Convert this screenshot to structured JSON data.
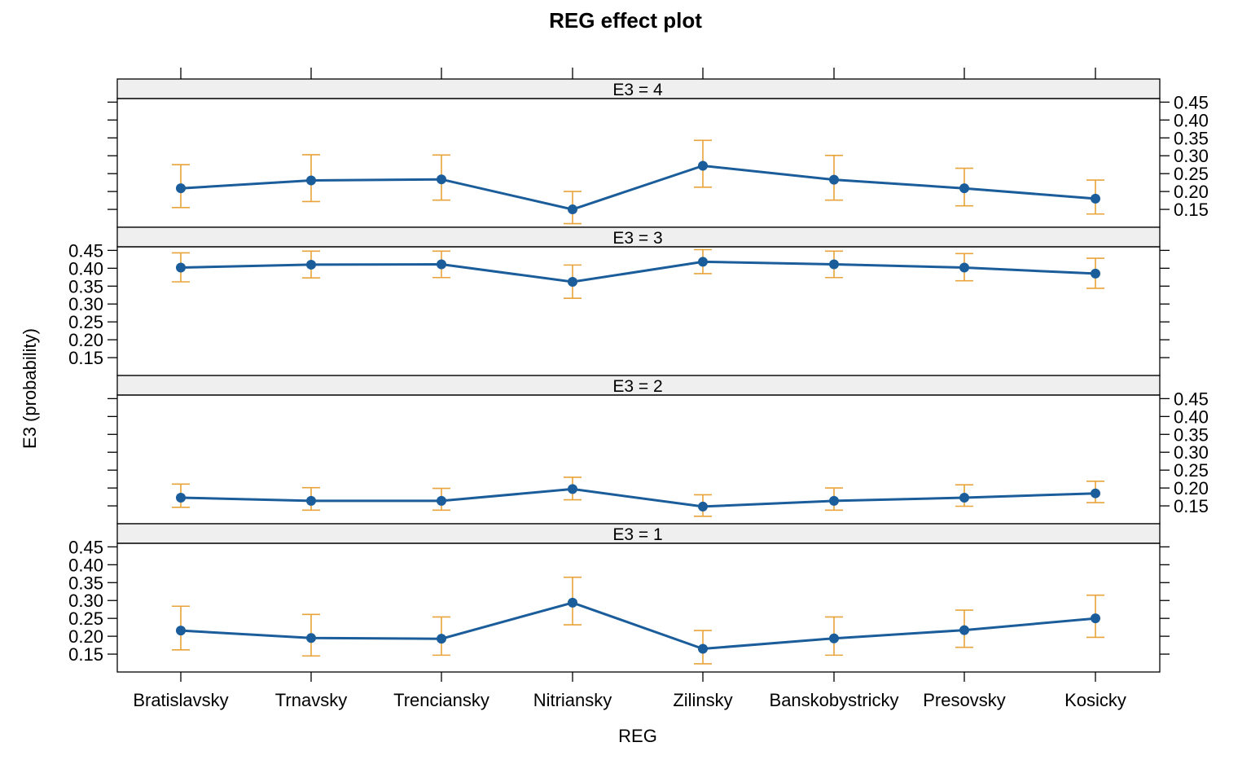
{
  "chart_data": {
    "type": "line",
    "title": "REG effect plot",
    "xlabel": "REG",
    "ylabel": "E3 (probability)",
    "categories": [
      "Bratislavsky",
      "Trnavsky",
      "Trenciansky",
      "Nitriansky",
      "Zilinsky",
      "Banskobystricky",
      "Presovsky",
      "Kosicky"
    ],
    "yticks": [
      "0.15",
      "0.20",
      "0.25",
      "0.30",
      "0.35",
      "0.40",
      "0.45"
    ],
    "ylim": [
      0.1,
      0.46
    ],
    "colors": {
      "line": "#1a5d9a",
      "point": "#1a5d9a",
      "errorbar": "#e8a33a",
      "strip": "#efefef"
    },
    "panels": [
      {
        "label": "E3 = 4",
        "values": [
          0.209,
          0.231,
          0.234,
          0.15,
          0.272,
          0.233,
          0.209,
          0.18
        ],
        "lower": [
          0.155,
          0.172,
          0.176,
          0.11,
          0.212,
          0.176,
          0.16,
          0.137
        ],
        "upper": [
          0.275,
          0.303,
          0.302,
          0.2,
          0.343,
          0.301,
          0.265,
          0.232
        ]
      },
      {
        "label": "E3 = 3",
        "values": [
          0.402,
          0.41,
          0.411,
          0.362,
          0.418,
          0.411,
          0.402,
          0.385
        ],
        "lower": [
          0.362,
          0.373,
          0.374,
          0.316,
          0.385,
          0.374,
          0.365,
          0.344
        ],
        "upper": [
          0.443,
          0.448,
          0.448,
          0.409,
          0.452,
          0.448,
          0.441,
          0.428
        ]
      },
      {
        "label": "E3 = 2",
        "values": [
          0.173,
          0.164,
          0.164,
          0.197,
          0.148,
          0.164,
          0.173,
          0.185
        ],
        "lower": [
          0.146,
          0.138,
          0.138,
          0.167,
          0.121,
          0.138,
          0.149,
          0.159
        ],
        "upper": [
          0.211,
          0.201,
          0.199,
          0.23,
          0.181,
          0.2,
          0.209,
          0.219
        ]
      },
      {
        "label": "E3 = 1",
        "values": [
          0.216,
          0.195,
          0.193,
          0.294,
          0.165,
          0.194,
          0.217,
          0.25
        ],
        "lower": [
          0.162,
          0.145,
          0.147,
          0.232,
          0.123,
          0.147,
          0.169,
          0.197
        ],
        "upper": [
          0.284,
          0.261,
          0.254,
          0.365,
          0.216,
          0.254,
          0.273,
          0.315
        ]
      }
    ]
  }
}
